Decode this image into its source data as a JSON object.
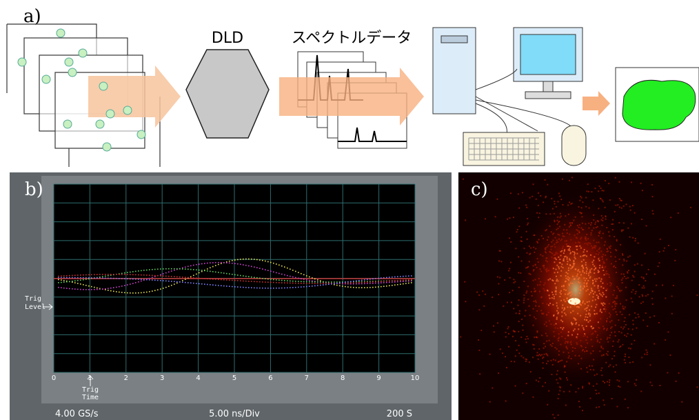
{
  "panel_a": {
    "label": "a)",
    "detector": "DLD",
    "spectrum": "スペクトルデータ"
  },
  "panel_b": {
    "label": "b)",
    "xticks": [
      0,
      1,
      2,
      3,
      4,
      5,
      6,
      7,
      8,
      9,
      10
    ],
    "trig_level": [
      "Trig",
      "Level"
    ],
    "trig_time": [
      "Trig",
      "Time"
    ],
    "sample_rate": "4.00 GS/s",
    "time_div": "5.00 ns/Div",
    "samples": "200 S"
  },
  "panel_c": {
    "label": "c)"
  }
}
